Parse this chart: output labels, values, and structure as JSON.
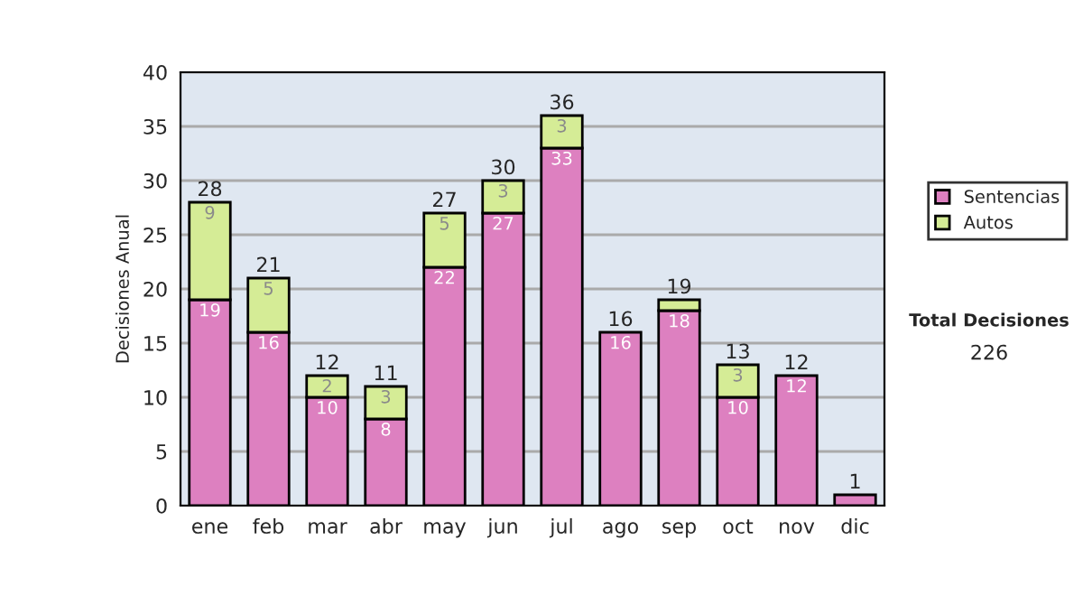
{
  "chart_data": {
    "type": "bar",
    "stacked": true,
    "ylabel": "Decisiones Anual",
    "categories": [
      "ene",
      "feb",
      "mar",
      "abr",
      "may",
      "jun",
      "jul",
      "ago",
      "sep",
      "oct",
      "nov",
      "dic"
    ],
    "series": [
      {
        "name": "Sentencias",
        "color": "#dd80c0",
        "values": [
          19,
          16,
          10,
          8,
          22,
          27,
          33,
          16,
          18,
          10,
          12,
          1
        ],
        "value_labels": [
          "19",
          "16",
          "10",
          "8",
          "22",
          "27",
          "33",
          "16",
          "18",
          "10",
          "12",
          null
        ]
      },
      {
        "name": "Autos",
        "color": "#d5ec96",
        "values": [
          9,
          5,
          2,
          3,
          5,
          3,
          3,
          null,
          1,
          3,
          null,
          null
        ],
        "value_labels": [
          "9",
          "5",
          "2",
          "3",
          "5",
          "3",
          "3",
          null,
          null,
          "3",
          null,
          null
        ]
      }
    ],
    "totals": [
      "28",
      "21",
      "12",
      "11",
      "27",
      "30",
      "36",
      "16",
      "19",
      "13",
      "12",
      "1"
    ],
    "ylim": [
      0,
      40
    ],
    "yticks": [
      0,
      5,
      10,
      15,
      20,
      25,
      30,
      35,
      40
    ],
    "grid": "y",
    "legend": "right",
    "annotations": [
      "Total Decisiones",
      "226"
    ]
  }
}
